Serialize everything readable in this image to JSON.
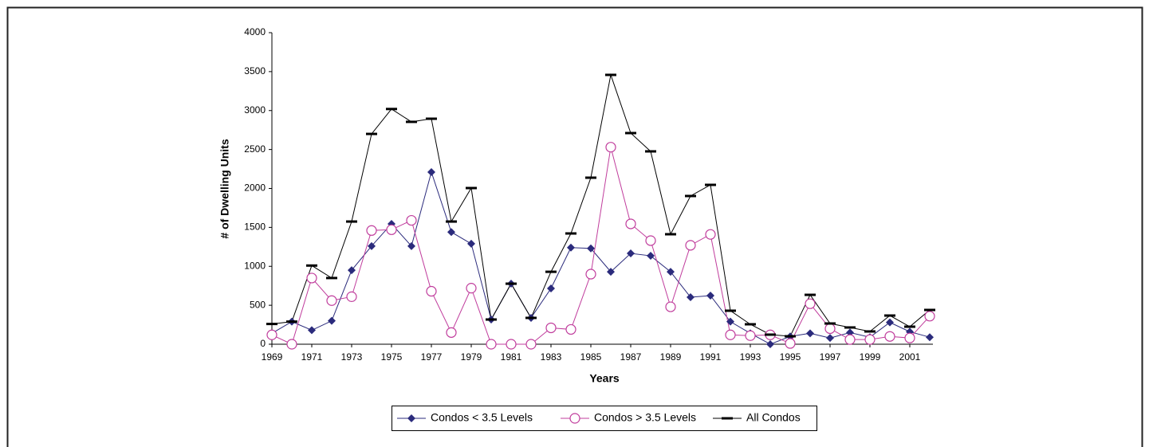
{
  "chart_data": {
    "type": "line",
    "x_label": "Years",
    "y_label": "# of Dwelling Units",
    "x": [
      1969,
      1970,
      1971,
      1972,
      1973,
      1974,
      1975,
      1976,
      1977,
      1978,
      1979,
      1980,
      1981,
      1982,
      1983,
      1984,
      1985,
      1986,
      1987,
      1988,
      1989,
      1990,
      1991,
      1992,
      1993,
      1994,
      1995,
      1996,
      1997,
      1998,
      1999,
      2000,
      2001,
      2002
    ],
    "xlim": [
      1969,
      2002
    ],
    "xticks": [
      1969,
      1971,
      1973,
      1975,
      1977,
      1979,
      1981,
      1983,
      1985,
      1987,
      1989,
      1991,
      1993,
      1995,
      1997,
      1999,
      2001
    ],
    "ylim": [
      0,
      4000
    ],
    "yticks": [
      0,
      500,
      1000,
      1500,
      2000,
      2500,
      3000,
      3500,
      4000
    ],
    "grid": false,
    "legend": "bottom",
    "series": [
      {
        "name": "Condos < 3.5 Levels",
        "color": "#2b2b7c",
        "marker": "diamond",
        "values": [
          140,
          290,
          180,
          300,
          950,
          1260,
          1545,
          1260,
          2210,
          1440,
          1290,
          317,
          777,
          338,
          716,
          1240,
          1230,
          930,
          1166,
          1135,
          930,
          604,
          624,
          290,
          140,
          0,
          100,
          140,
          80,
          150,
          90,
          280,
          160,
          90
        ]
      },
      {
        "name": "Condos > 3.5 Levels",
        "color": "#c03c9c",
        "marker": "circle",
        "values": [
          120,
          0,
          850,
          560,
          610,
          1460,
          1470,
          1590,
          680,
          150,
          720,
          0,
          0,
          0,
          210,
          190,
          900,
          2530,
          1545,
          1330,
          480,
          1270,
          1410,
          120,
          110,
          120,
          10,
          520,
          200,
          60,
          60,
          100,
          80,
          360
        ]
      },
      {
        "name": "All Condos",
        "color": "#000000",
        "marker": "dash",
        "values": [
          260,
          290,
          1010,
          850,
          1575,
          2700,
          3020,
          2855,
          2895,
          1575,
          2005,
          317,
          777,
          338,
          930,
          1422,
          2138,
          3458,
          2711,
          2476,
          1412,
          1903,
          2046,
          430,
          256,
          123,
          102,
          634,
          266,
          215,
          164,
          368,
          225,
          440
        ]
      }
    ]
  }
}
